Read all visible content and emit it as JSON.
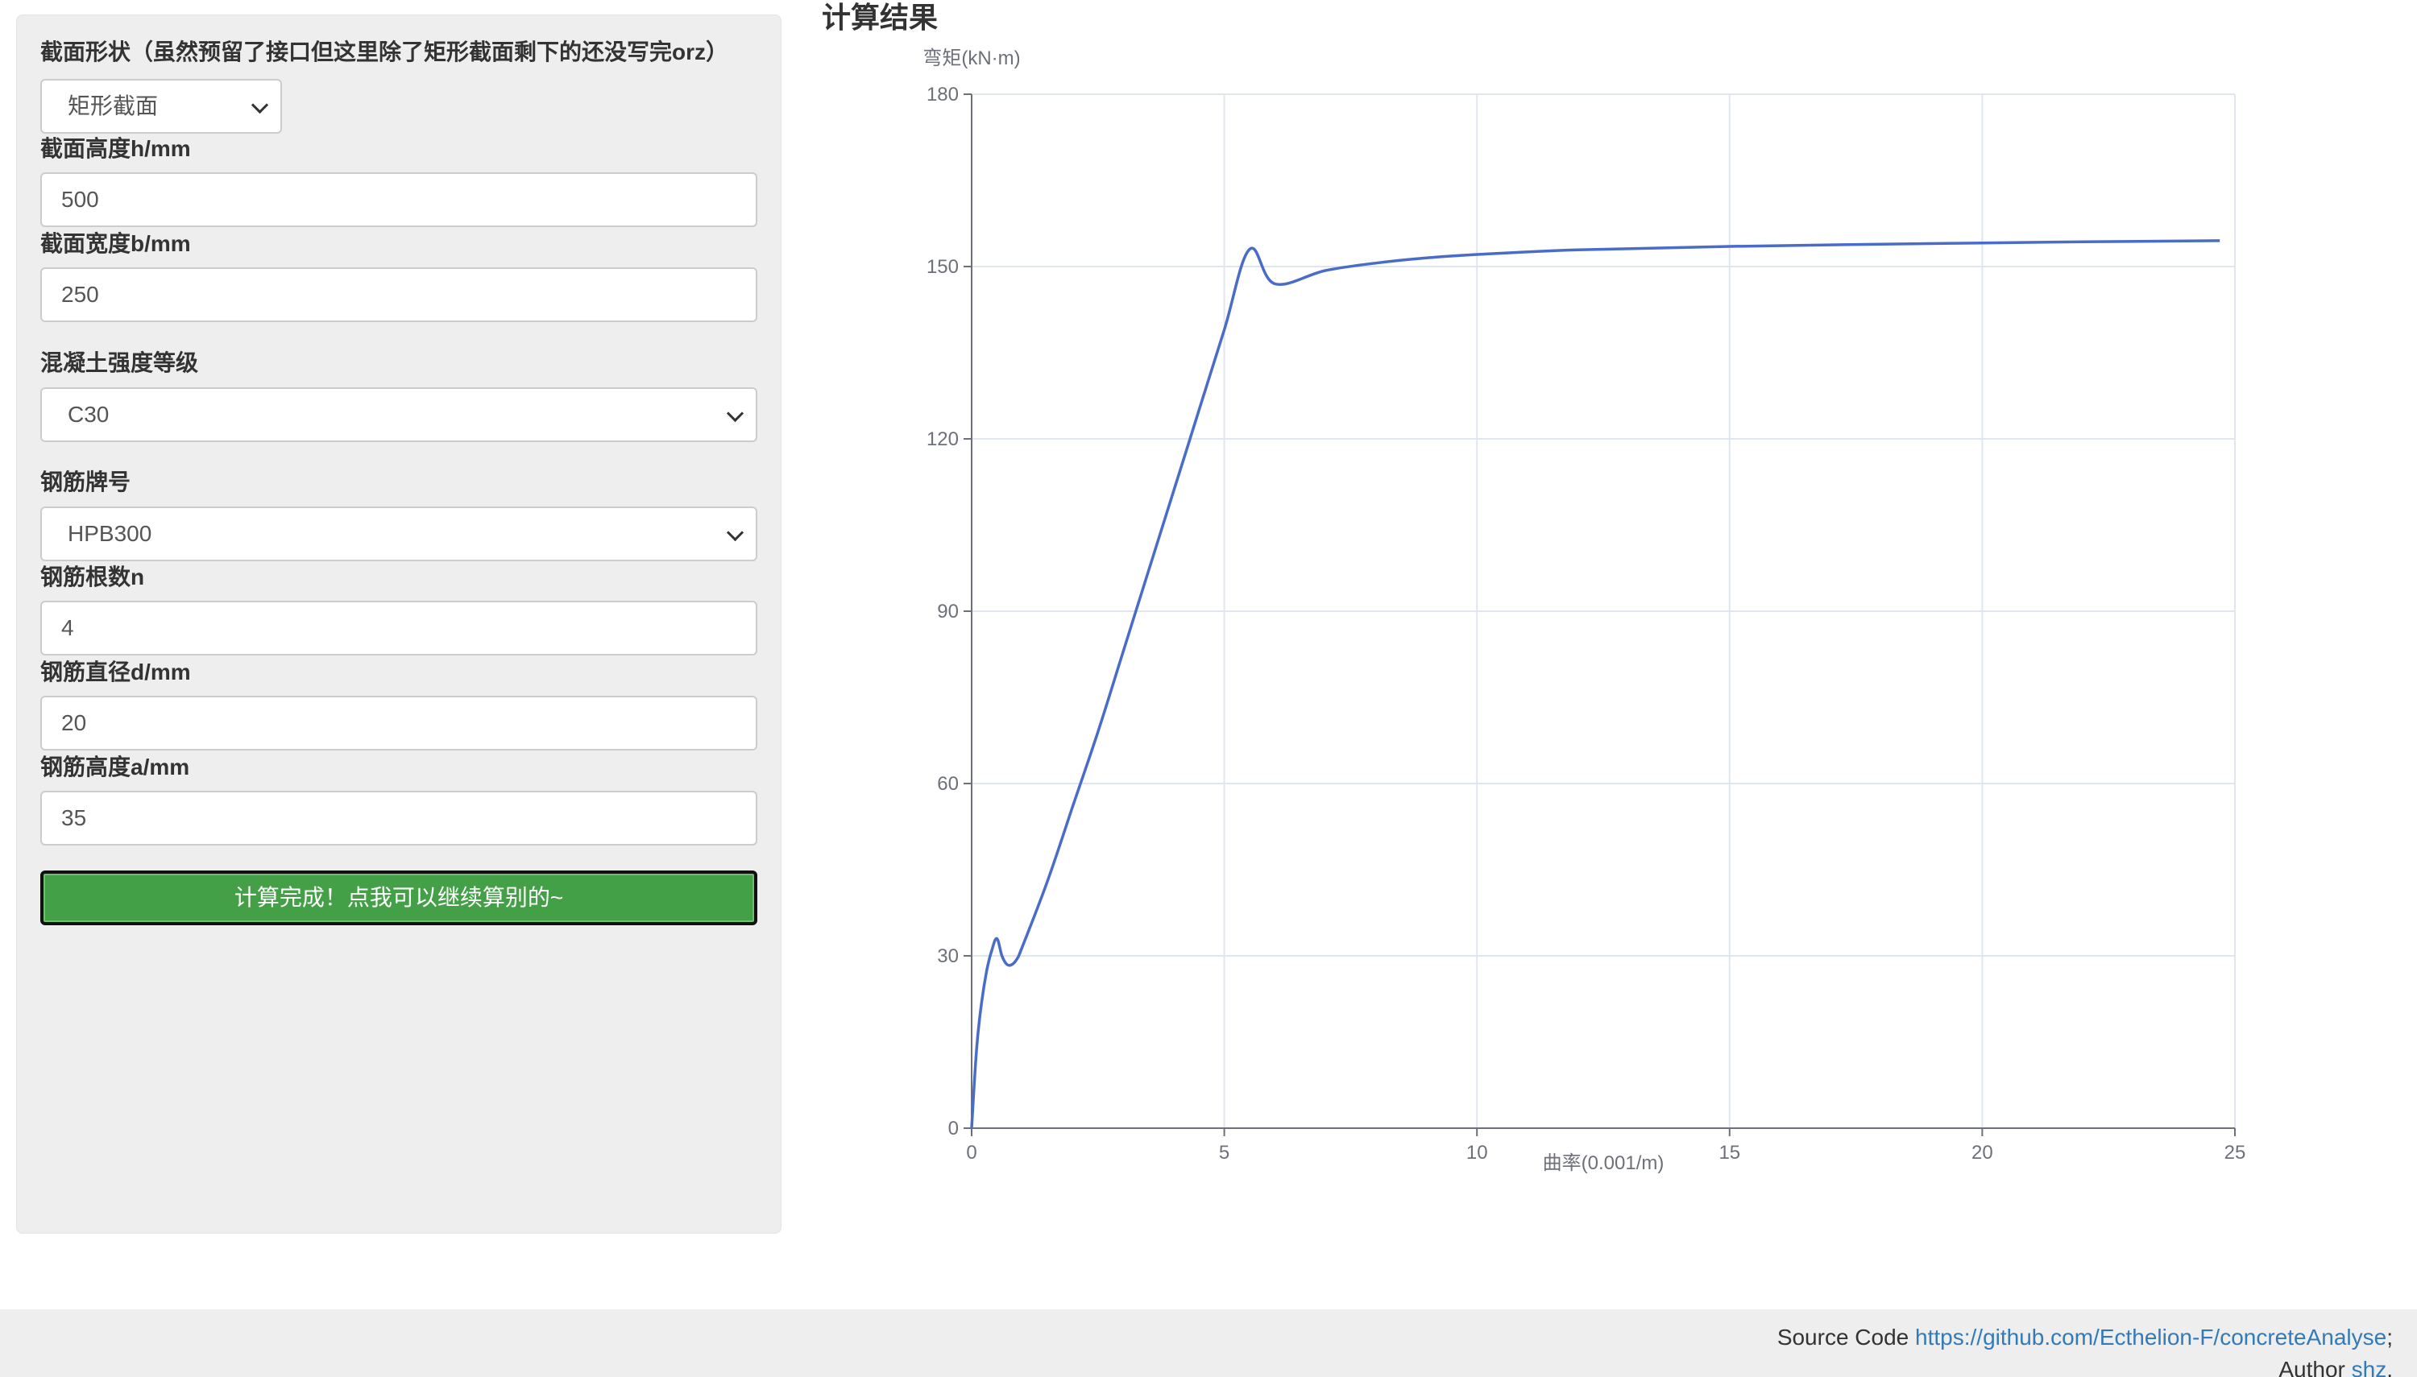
{
  "form": {
    "section_label": "截面形状（虽然预留了接口但这里除了矩形截面剩下的还没写完orz）",
    "section_value": "矩形截面",
    "height_label": "截面高度h/mm",
    "height_value": "500",
    "width_label": "截面宽度b/mm",
    "width_value": "250",
    "concrete_label": "混凝土强度等级",
    "concrete_value": "C30",
    "rebar_grade_label": "钢筋牌号",
    "rebar_grade_value": "HPB300",
    "rebar_count_label": "钢筋根数n",
    "rebar_count_value": "4",
    "rebar_diameter_label": "钢筋直径d/mm",
    "rebar_diameter_value": "20",
    "rebar_height_label": "钢筋高度a/mm",
    "rebar_height_value": "35",
    "submit_label": "计算完成！点我可以继续算别的~"
  },
  "result": {
    "title": "计算结果"
  },
  "chart_data": {
    "type": "line",
    "ylabel": "弯矩(kN·m)",
    "xlabel": "曲率(0.001/m)",
    "xlim": [
      0,
      25
    ],
    "ylim": [
      0,
      180
    ],
    "x_ticks": [
      "0",
      "5",
      "10",
      "15",
      "20",
      "25"
    ],
    "y_ticks": [
      "0",
      "30",
      "60",
      "90",
      "120",
      "150",
      "180"
    ],
    "grid": true,
    "line_color": "#4a6cc9",
    "x": [
      0,
      0.1,
      0.2,
      0.3,
      0.4,
      0.5,
      0.6,
      0.7,
      0.8,
      0.9,
      1.0,
      1.5,
      2.0,
      2.5,
      3.0,
      3.5,
      4.0,
      4.5,
      5.0,
      5.5,
      6.0,
      7.0,
      8.0,
      9.0,
      10.0,
      12.0,
      15.0,
      18.0,
      20.0,
      22.0,
      24.7
    ],
    "y": [
      0,
      14,
      22,
      27.5,
      31,
      33,
      30,
      28.5,
      28.5,
      29.5,
      31.5,
      43,
      56,
      69,
      83,
      97,
      111,
      125,
      139,
      153,
      147,
      149.3,
      150.6,
      151.5,
      152.1,
      152.9,
      153.5,
      153.9,
      154.1,
      154.3,
      154.5
    ]
  },
  "footer": {
    "source_prefix": "Source Code ",
    "source_link": "https://github.com/Ecthelion-F/concreteAnalyse",
    "source_suffix": ";",
    "author_prefix": "Author ",
    "author_link": "shz",
    "author_suffix": "."
  }
}
